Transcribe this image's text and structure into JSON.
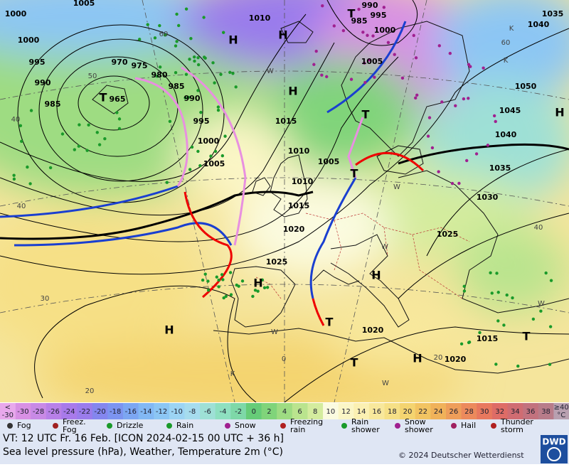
{
  "map": {
    "isobar_labels": [
      1005,
      1000,
      1000,
      995,
      990,
      985,
      970,
      975,
      965,
      980,
      985,
      990,
      995,
      1000,
      1005,
      1010,
      1015,
      1010,
      1005,
      1010,
      1015,
      1020,
      1025,
      1025,
      1030,
      1035,
      1040,
      1045,
      1050,
      1035,
      1040,
      990,
      995,
      985,
      1000,
      1005,
      1020,
      1015,
      1020
    ],
    "pressure_centers": [
      "H",
      "H",
      "H",
      "T",
      "T",
      "T",
      "T",
      "H",
      "H",
      "T",
      "H",
      "T",
      "H",
      "T",
      "H"
    ],
    "temperature_labels": [
      60,
      50,
      40,
      40,
      30,
      20,
      60,
      40,
      0,
      20
    ],
    "air_mass_labels": [
      "K",
      "K",
      "W",
      "W",
      "W",
      "W",
      "K",
      "W",
      "W"
    ]
  },
  "legend_scale": {
    "min_label": [
      "<",
      "-30"
    ],
    "steps": [
      {
        "value": -30,
        "color": "#d890e4"
      },
      {
        "value": -28,
        "color": "#c88ae6"
      },
      {
        "value": -26,
        "color": "#b880e8"
      },
      {
        "value": -24,
        "color": "#a87aea"
      },
      {
        "value": -22,
        "color": "#9a7cec"
      },
      {
        "value": -20,
        "color": "#8486ee"
      },
      {
        "value": -18,
        "color": "#7c94f0"
      },
      {
        "value": -16,
        "color": "#7ca6f2"
      },
      {
        "value": -14,
        "color": "#82b8f4"
      },
      {
        "value": -12,
        "color": "#8cc6f4"
      },
      {
        "value": -10,
        "color": "#9cd4f4"
      },
      {
        "value": -8,
        "color": "#a6dcee"
      },
      {
        "value": -6,
        "color": "#9ee0d6"
      },
      {
        "value": -4,
        "color": "#8ee0c0"
      },
      {
        "value": -2,
        "color": "#7ed8a8"
      },
      {
        "value": 0,
        "color": "#66cc78"
      },
      {
        "value": 2,
        "color": "#80d47a"
      },
      {
        "value": 4,
        "color": "#9edc82"
      },
      {
        "value": 6,
        "color": "#bae48e"
      },
      {
        "value": 8,
        "color": "#d4ec9e"
      },
      {
        "value": 10,
        "color": "#fbfbe0"
      },
      {
        "value": 12,
        "color": "#fbf6c6"
      },
      {
        "value": 14,
        "color": "#fbf0b2"
      },
      {
        "value": 16,
        "color": "#f8e89c"
      },
      {
        "value": 18,
        "color": "#f6e086"
      },
      {
        "value": 20,
        "color": "#f4d470"
      },
      {
        "value": 22,
        "color": "#f2c462"
      },
      {
        "value": 24,
        "color": "#f0b25a"
      },
      {
        "value": 26,
        "color": "#ee9e5a"
      },
      {
        "value": 28,
        "color": "#ec8a5c"
      },
      {
        "value": 30,
        "color": "#e8785e"
      },
      {
        "value": 32,
        "color": "#de6c66"
      },
      {
        "value": 34,
        "color": "#d06c72"
      },
      {
        "value": 36,
        "color": "#c2727e"
      },
      {
        "value": 38,
        "color": "#b87c8a"
      }
    ],
    "max_label": [
      "≥40",
      "°C"
    ]
  },
  "legend_symbols": [
    "Fog",
    "Freez.\nFog",
    "Drizzle",
    "Rain",
    "Snow",
    "Freezing\nrain",
    "Rain\nshower",
    "Snow\nshower",
    "Hail",
    "Thunder\nstorm"
  ],
  "footer": {
    "valid_time": "VT: 12 UTC Fr.  16 Feb. [ICON 2024-02-15  00 UTC + 36 h]",
    "description": "Sea level pressure (hPa), Weather, Temperature 2m (°C)",
    "copyright": "© 2024 Deutscher Wetterdienst",
    "logo": "DWD"
  }
}
